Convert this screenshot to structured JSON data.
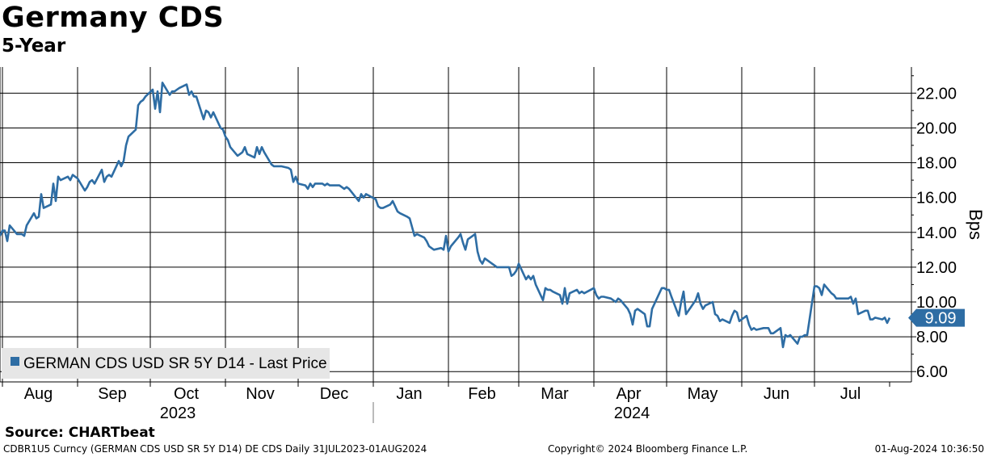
{
  "header": {
    "title": "Germany CDS",
    "subtitle": "5-Year"
  },
  "footer": {
    "source": "Source: CHARTbeat",
    "ticker_info": "CDBR1U5 Curncy (GERMAN CDS USD SR 5Y D14) DE CDS  Daily 31JUL2023-01AUG2024",
    "copyright": "Copyright© 2024 Bloomberg Finance L.P.",
    "timestamp": "01-Aug-2024 10:36:50"
  },
  "colors": {
    "line": "#2e6da4",
    "last_price_tag": "#2e6da4",
    "legend_bg": "#e6e6e6",
    "grid": "#000000"
  },
  "chart_data": {
    "type": "line",
    "title": "Germany CDS",
    "subtitle": "5-Year",
    "ylabel": "Bps",
    "ylim": [
      5.5,
      23.5
    ],
    "yticks": [
      "6.00",
      "8.00",
      "10.00",
      "12.00",
      "14.00",
      "16.00",
      "18.00",
      "20.00",
      "22.00"
    ],
    "xlim": [
      "2023-07-31",
      "2024-08-01"
    ],
    "month_labels": [
      "Aug",
      "Sep",
      "Oct",
      "Nov",
      "Dec",
      "Jan",
      "Feb",
      "Mar",
      "Apr",
      "May",
      "Jun",
      "Jul"
    ],
    "year_labels": [
      "2023",
      "2024"
    ],
    "legend": "GERMAN CDS USD SR 5Y D14 - Last Price",
    "legend_position": "bottom-left",
    "grid": true,
    "last_value": "9.09",
    "series": [
      {
        "name": "GERMAN CDS USD SR 5Y D14 - Last Price",
        "points": [
          [
            "2023-07-31",
            13.8
          ],
          [
            "2023-08-01",
            14.1
          ],
          [
            "2023-08-02",
            14.1
          ],
          [
            "2023-08-03",
            13.5
          ],
          [
            "2023-08-04",
            14.4
          ],
          [
            "2023-08-07",
            13.9
          ],
          [
            "2023-08-08",
            13.9
          ],
          [
            "2023-08-09",
            13.9
          ],
          [
            "2023-08-10",
            13.8
          ],
          [
            "2023-08-11",
            14.4
          ],
          [
            "2023-08-14",
            15.1
          ],
          [
            "2023-08-15",
            14.8
          ],
          [
            "2023-08-16",
            14.9
          ],
          [
            "2023-08-17",
            16.2
          ],
          [
            "2023-08-18",
            15.4
          ],
          [
            "2023-08-21",
            15.6
          ],
          [
            "2023-08-22",
            16.8
          ],
          [
            "2023-08-23",
            15.8
          ],
          [
            "2023-08-24",
            17.2
          ],
          [
            "2023-08-25",
            17.0
          ],
          [
            "2023-08-28",
            17.2
          ],
          [
            "2023-08-29",
            17.0
          ],
          [
            "2023-08-30",
            17.3
          ],
          [
            "2023-08-31",
            17.2
          ],
          [
            "2023-09-01",
            17.1
          ],
          [
            "2023-09-04",
            16.4
          ],
          [
            "2023-09-05",
            16.6
          ],
          [
            "2023-09-06",
            16.9
          ],
          [
            "2023-09-07",
            17.0
          ],
          [
            "2023-09-08",
            16.8
          ],
          [
            "2023-09-11",
            17.6
          ],
          [
            "2023-09-12",
            16.9
          ],
          [
            "2023-09-13",
            17.2
          ],
          [
            "2023-09-14",
            17.3
          ],
          [
            "2023-09-15",
            17.2
          ],
          [
            "2023-09-18",
            18.1
          ],
          [
            "2023-09-19",
            17.8
          ],
          [
            "2023-09-20",
            18.1
          ],
          [
            "2023-09-21",
            19.0
          ],
          [
            "2023-09-22",
            19.5
          ],
          [
            "2023-09-25",
            19.9
          ],
          [
            "2023-09-26",
            21.3
          ],
          [
            "2023-09-27",
            21.5
          ],
          [
            "2023-09-28",
            21.6
          ],
          [
            "2023-09-29",
            21.8
          ],
          [
            "2023-10-02",
            22.2
          ],
          [
            "2023-10-03",
            21.1
          ],
          [
            "2023-10-04",
            22.1
          ],
          [
            "2023-10-05",
            20.9
          ],
          [
            "2023-10-06",
            22.6
          ],
          [
            "2023-10-09",
            21.9
          ],
          [
            "2023-10-10",
            22.1
          ],
          [
            "2023-10-11",
            22.1
          ],
          [
            "2023-10-12",
            22.2
          ],
          [
            "2023-10-13",
            22.3
          ],
          [
            "2023-10-16",
            22.5
          ],
          [
            "2023-10-17",
            21.9
          ],
          [
            "2023-10-18",
            22.1
          ],
          [
            "2023-10-19",
            21.8
          ],
          [
            "2023-10-20",
            21.8
          ],
          [
            "2023-10-23",
            20.5
          ],
          [
            "2023-10-24",
            21.0
          ],
          [
            "2023-10-25",
            20.9
          ],
          [
            "2023-10-26",
            20.6
          ],
          [
            "2023-10-27",
            20.9
          ],
          [
            "2023-10-30",
            20.0
          ],
          [
            "2023-10-31",
            19.9
          ],
          [
            "2023-11-01",
            19.5
          ],
          [
            "2023-11-02",
            19.3
          ],
          [
            "2023-11-03",
            18.9
          ],
          [
            "2023-11-06",
            18.4
          ],
          [
            "2023-11-07",
            18.5
          ],
          [
            "2023-11-08",
            18.6
          ],
          [
            "2023-11-09",
            18.9
          ],
          [
            "2023-11-10",
            18.5
          ],
          [
            "2023-11-13",
            18.3
          ],
          [
            "2023-11-14",
            18.9
          ],
          [
            "2023-11-15",
            18.5
          ],
          [
            "2023-11-16",
            18.9
          ],
          [
            "2023-11-17",
            18.6
          ],
          [
            "2023-11-20",
            17.9
          ],
          [
            "2023-11-21",
            17.8
          ],
          [
            "2023-11-22",
            17.8
          ],
          [
            "2023-11-23",
            17.8
          ],
          [
            "2023-11-24",
            17.8
          ],
          [
            "2023-11-27",
            17.7
          ],
          [
            "2023-11-28",
            17.6
          ],
          [
            "2023-11-29",
            16.9
          ],
          [
            "2023-11-30",
            17.2
          ],
          [
            "2023-12-01",
            16.8
          ],
          [
            "2023-12-04",
            16.7
          ],
          [
            "2023-12-05",
            16.5
          ],
          [
            "2023-12-06",
            16.8
          ],
          [
            "2023-12-07",
            16.6
          ],
          [
            "2023-12-08",
            16.8
          ],
          [
            "2023-12-11",
            16.8
          ],
          [
            "2023-12-12",
            16.7
          ],
          [
            "2023-12-13",
            16.8
          ],
          [
            "2023-12-14",
            16.7
          ],
          [
            "2023-12-15",
            16.7
          ],
          [
            "2023-12-18",
            16.7
          ],
          [
            "2023-12-19",
            16.6
          ],
          [
            "2023-12-20",
            16.5
          ],
          [
            "2023-12-21",
            16.6
          ],
          [
            "2023-12-22",
            16.5
          ],
          [
            "2023-12-26",
            15.8
          ],
          [
            "2023-12-27",
            16.2
          ],
          [
            "2023-12-28",
            16.0
          ],
          [
            "2023-12-29",
            16.2
          ],
          [
            "2024-01-02",
            15.9
          ],
          [
            "2024-01-03",
            15.5
          ],
          [
            "2024-01-04",
            15.4
          ],
          [
            "2024-01-05",
            15.4
          ],
          [
            "2024-01-08",
            15.6
          ],
          [
            "2024-01-09",
            15.8
          ],
          [
            "2024-01-10",
            15.5
          ],
          [
            "2024-01-11",
            15.2
          ],
          [
            "2024-01-12",
            15.1
          ],
          [
            "2024-01-15",
            14.9
          ],
          [
            "2024-01-16",
            14.8
          ],
          [
            "2024-01-17",
            14.3
          ],
          [
            "2024-01-18",
            13.8
          ],
          [
            "2024-01-19",
            13.9
          ],
          [
            "2024-01-22",
            13.7
          ],
          [
            "2024-01-23",
            13.5
          ],
          [
            "2024-01-24",
            13.2
          ],
          [
            "2024-01-25",
            13.1
          ],
          [
            "2024-01-26",
            13.0
          ],
          [
            "2024-01-29",
            13.1
          ],
          [
            "2024-01-30",
            13.0
          ],
          [
            "2024-01-31",
            13.8
          ],
          [
            "2024-02-01",
            12.9
          ],
          [
            "2024-02-02",
            13.2
          ],
          [
            "2024-02-05",
            13.7
          ],
          [
            "2024-02-06",
            13.9
          ],
          [
            "2024-02-07",
            13.4
          ],
          [
            "2024-02-08",
            13.0
          ],
          [
            "2024-02-09",
            13.6
          ],
          [
            "2024-02-12",
            13.9
          ],
          [
            "2024-02-13",
            12.9
          ],
          [
            "2024-02-14",
            12.4
          ],
          [
            "2024-02-15",
            12.2
          ],
          [
            "2024-02-16",
            12.5
          ],
          [
            "2024-02-19",
            12.2
          ],
          [
            "2024-02-20",
            12.1
          ],
          [
            "2024-02-21",
            12.0
          ],
          [
            "2024-02-22",
            12.0
          ],
          [
            "2024-02-23",
            12.0
          ],
          [
            "2024-02-26",
            12.0
          ],
          [
            "2024-02-27",
            11.5
          ],
          [
            "2024-02-28",
            11.6
          ],
          [
            "2024-02-29",
            11.8
          ],
          [
            "2024-03-01",
            12.2
          ],
          [
            "2024-03-04",
            11.3
          ],
          [
            "2024-03-05",
            11.5
          ],
          [
            "2024-03-06",
            11.3
          ],
          [
            "2024-03-07",
            11.5
          ],
          [
            "2024-03-08",
            11.0
          ],
          [
            "2024-03-11",
            10.1
          ],
          [
            "2024-03-12",
            10.8
          ],
          [
            "2024-03-13",
            10.7
          ],
          [
            "2024-03-14",
            10.7
          ],
          [
            "2024-03-15",
            10.6
          ],
          [
            "2024-03-18",
            10.4
          ],
          [
            "2024-03-19",
            9.9
          ],
          [
            "2024-03-20",
            10.8
          ],
          [
            "2024-03-21",
            9.9
          ],
          [
            "2024-03-22",
            10.5
          ],
          [
            "2024-03-25",
            10.7
          ],
          [
            "2024-03-26",
            10.5
          ],
          [
            "2024-03-27",
            10.6
          ],
          [
            "2024-03-28",
            10.5
          ],
          [
            "2024-04-01",
            10.8
          ],
          [
            "2024-04-02",
            10.4
          ],
          [
            "2024-04-03",
            10.2
          ],
          [
            "2024-04-04",
            10.3
          ],
          [
            "2024-04-05",
            10.3
          ],
          [
            "2024-04-08",
            10.2
          ],
          [
            "2024-04-09",
            10.1
          ],
          [
            "2024-04-10",
            10.0
          ],
          [
            "2024-04-11",
            10.2
          ],
          [
            "2024-04-12",
            10.1
          ],
          [
            "2024-04-15",
            9.6
          ],
          [
            "2024-04-16",
            9.3
          ],
          [
            "2024-04-17",
            8.7
          ],
          [
            "2024-04-18",
            9.5
          ],
          [
            "2024-04-19",
            9.6
          ],
          [
            "2024-04-22",
            9.3
          ],
          [
            "2024-04-23",
            8.6
          ],
          [
            "2024-04-24",
            8.6
          ],
          [
            "2024-04-25",
            9.6
          ],
          [
            "2024-04-26",
            9.9
          ],
          [
            "2024-04-29",
            10.8
          ],
          [
            "2024-04-30",
            10.8
          ],
          [
            "2024-05-01",
            10.7
          ],
          [
            "2024-05-02",
            10.7
          ],
          [
            "2024-05-03",
            10.3
          ],
          [
            "2024-05-06",
            9.2
          ],
          [
            "2024-05-07",
            10.0
          ],
          [
            "2024-05-08",
            10.6
          ],
          [
            "2024-05-09",
            9.3
          ],
          [
            "2024-05-10",
            9.5
          ],
          [
            "2024-05-13",
            10.1
          ],
          [
            "2024-05-14",
            10.5
          ],
          [
            "2024-05-15",
            9.9
          ],
          [
            "2024-05-16",
            9.6
          ],
          [
            "2024-05-17",
            9.8
          ],
          [
            "2024-05-20",
            10.0
          ],
          [
            "2024-05-21",
            9.3
          ],
          [
            "2024-05-22",
            9.2
          ],
          [
            "2024-05-23",
            8.9
          ],
          [
            "2024-05-24",
            9.0
          ],
          [
            "2024-05-27",
            8.8
          ],
          [
            "2024-05-28",
            9.2
          ],
          [
            "2024-05-29",
            9.5
          ],
          [
            "2024-05-30",
            9.4
          ],
          [
            "2024-05-31",
            8.9
          ],
          [
            "2024-06-03",
            9.2
          ],
          [
            "2024-06-04",
            8.7
          ],
          [
            "2024-06-05",
            8.4
          ],
          [
            "2024-06-06",
            8.5
          ],
          [
            "2024-06-07",
            8.4
          ],
          [
            "2024-06-10",
            8.5
          ],
          [
            "2024-06-11",
            8.5
          ],
          [
            "2024-06-12",
            8.5
          ],
          [
            "2024-06-13",
            8.2
          ],
          [
            "2024-06-14",
            8.2
          ],
          [
            "2024-06-17",
            8.5
          ],
          [
            "2024-06-18",
            7.4
          ],
          [
            "2024-06-19",
            8.1
          ],
          [
            "2024-06-20",
            8.0
          ],
          [
            "2024-06-21",
            8.1
          ],
          [
            "2024-06-24",
            7.6
          ],
          [
            "2024-06-25",
            8.0
          ],
          [
            "2024-06-26",
            8.0
          ],
          [
            "2024-06-27",
            8.1
          ],
          [
            "2024-06-28",
            8.1
          ],
          [
            "2024-07-01",
            10.9
          ],
          [
            "2024-07-02",
            10.9
          ],
          [
            "2024-07-03",
            10.8
          ],
          [
            "2024-07-04",
            10.4
          ],
          [
            "2024-07-05",
            11.0
          ],
          [
            "2024-07-08",
            10.5
          ],
          [
            "2024-07-09",
            10.4
          ],
          [
            "2024-07-10",
            10.2
          ],
          [
            "2024-07-11",
            10.2
          ],
          [
            "2024-07-12",
            10.2
          ],
          [
            "2024-07-15",
            10.2
          ],
          [
            "2024-07-16",
            10.3
          ],
          [
            "2024-07-17",
            9.9
          ],
          [
            "2024-07-18",
            10.2
          ],
          [
            "2024-07-19",
            9.3
          ],
          [
            "2024-07-22",
            9.5
          ],
          [
            "2024-07-23",
            9.5
          ],
          [
            "2024-07-24",
            9.0
          ],
          [
            "2024-07-25",
            9.0
          ],
          [
            "2024-07-26",
            9.1
          ],
          [
            "2024-07-29",
            9.0
          ],
          [
            "2024-07-30",
            9.1
          ],
          [
            "2024-07-31",
            8.8
          ],
          [
            "2024-08-01",
            9.09
          ]
        ]
      }
    ]
  }
}
